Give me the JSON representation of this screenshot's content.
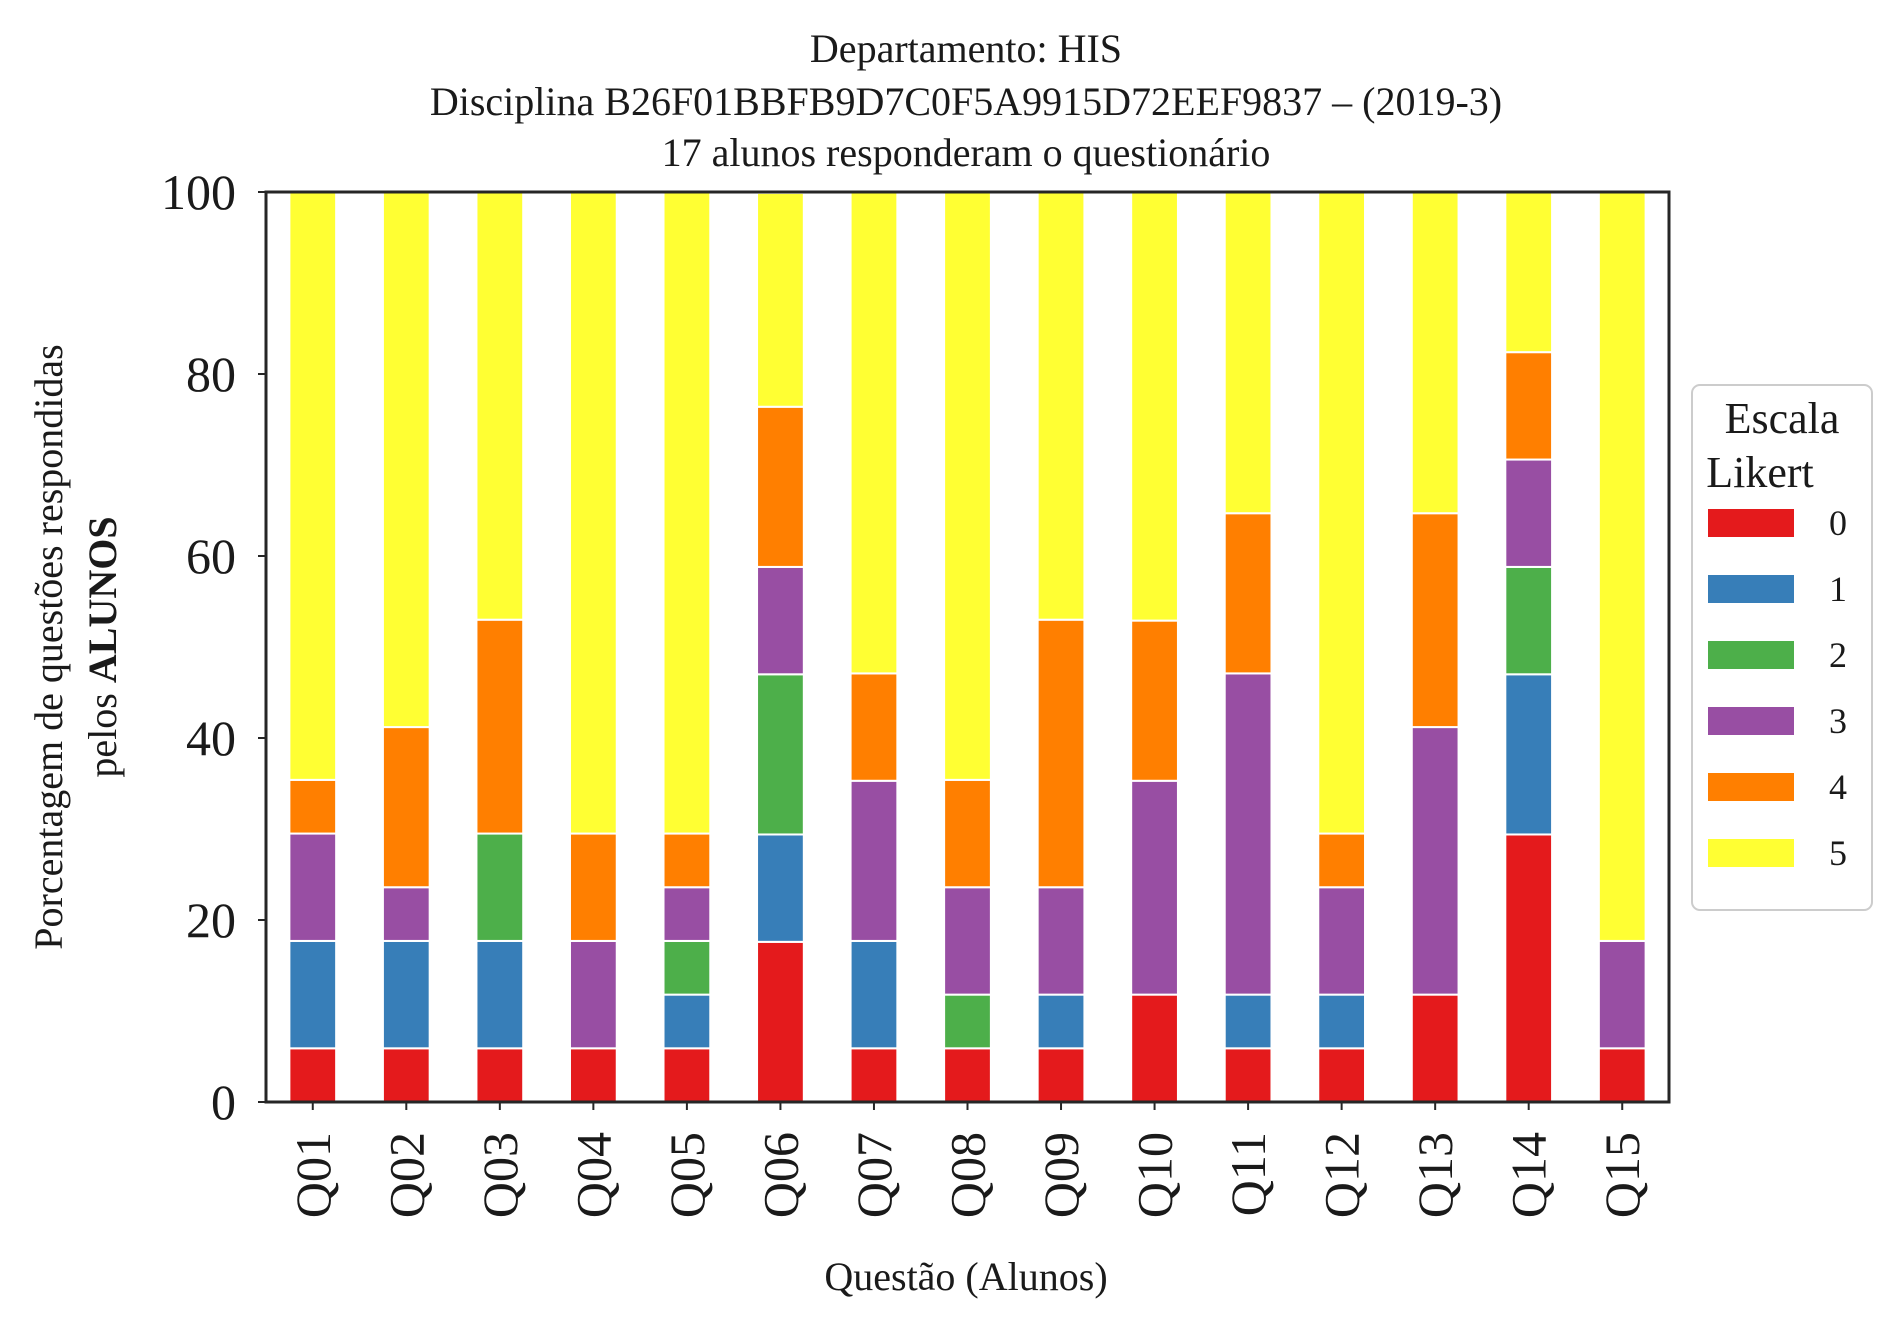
{
  "chart_data": {
    "type": "bar",
    "stacked": true,
    "title_lines": [
      "Departamento: HIS",
      "Disciplina B26F01BBFB9D7C0F5A9915D72EEF9837 – (2019-3)",
      "17 alunos responderam o questionário"
    ],
    "xlabel": "Questão (Alunos)",
    "ylabel_line1": "Porcentagem de questões respondidas",
    "ylabel_line2_prefix": "pelos ",
    "ylabel_line2_bold": "ALUNOS",
    "ylim": [
      0,
      100
    ],
    "yticks": [
      "0",
      "20",
      "40",
      "60",
      "80",
      "100"
    ],
    "grid": false,
    "legend": {
      "title_line1": "Escala",
      "title_line2": "Likert",
      "placement": "right"
    },
    "categories": [
      "Q01",
      "Q02",
      "Q03",
      "Q04",
      "Q05",
      "Q06",
      "Q07",
      "Q08",
      "Q09",
      "Q10",
      "Q11",
      "Q12",
      "Q13",
      "Q14",
      "Q15"
    ],
    "series": [
      {
        "name": "0",
        "color": "#e41a1c",
        "values": [
          5.9,
          5.9,
          5.9,
          5.9,
          5.9,
          17.6,
          5.9,
          5.9,
          5.9,
          11.8,
          5.9,
          5.9,
          11.8,
          29.4,
          5.9
        ]
      },
      {
        "name": "1",
        "color": "#377eb8",
        "values": [
          11.8,
          11.8,
          11.8,
          0,
          5.9,
          11.8,
          11.8,
          0,
          5.9,
          0,
          5.9,
          5.9,
          0,
          17.6,
          0
        ]
      },
      {
        "name": "2",
        "color": "#4daf4a",
        "values": [
          0,
          0,
          11.8,
          0,
          5.9,
          17.6,
          0,
          5.9,
          0,
          0,
          0,
          0,
          0,
          11.8,
          0
        ]
      },
      {
        "name": "3",
        "color": "#984ea3",
        "values": [
          11.8,
          5.9,
          0,
          11.8,
          5.9,
          11.8,
          17.6,
          11.8,
          11.8,
          23.5,
          35.3,
          11.8,
          29.4,
          11.8,
          11.8
        ]
      },
      {
        "name": "4",
        "color": "#ff7f00",
        "values": [
          5.9,
          17.6,
          23.5,
          11.8,
          5.9,
          17.6,
          11.8,
          11.8,
          29.4,
          17.6,
          17.6,
          5.9,
          23.5,
          11.8,
          0
        ]
      },
      {
        "name": "5",
        "color": "#ffff33",
        "values": [
          64.7,
          58.8,
          47.1,
          70.6,
          70.6,
          23.5,
          52.9,
          64.7,
          47.1,
          47.1,
          35.3,
          70.6,
          35.3,
          17.6,
          82.4
        ]
      }
    ]
  }
}
